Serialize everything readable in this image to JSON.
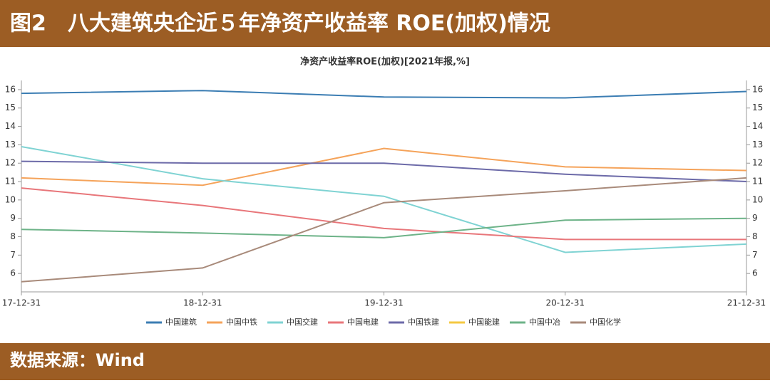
{
  "header": {
    "title": "图2　八大建筑央企近５年净资产收益率 ROE(加权)情况"
  },
  "footer": {
    "source": "数据来源：Wind"
  },
  "chart_data": {
    "type": "line",
    "title": "净资产收益率ROE(加权)[2021年报,%]",
    "categories": [
      "17-12-31",
      "18-12-31",
      "19-12-31",
      "20-12-31",
      "21-12-31"
    ],
    "ylim": [
      5,
      16.5
    ],
    "yticks": [
      6,
      7,
      8,
      9,
      10,
      11,
      12,
      13,
      14,
      15,
      16
    ],
    "legend": "bottom",
    "series": [
      {
        "name": "中国建筑",
        "color": "#3b7db3",
        "values": [
          15.8,
          15.95,
          15.6,
          15.55,
          15.9
        ]
      },
      {
        "name": "中国中铁",
        "color": "#f5a35a",
        "values": [
          11.2,
          10.8,
          12.8,
          11.8,
          11.6
        ]
      },
      {
        "name": "中国交建",
        "color": "#7fd3d3",
        "values": [
          12.9,
          11.15,
          10.2,
          7.15,
          7.6
        ]
      },
      {
        "name": "中国电建",
        "color": "#e8767a",
        "values": [
          10.65,
          9.7,
          8.45,
          7.85,
          7.85
        ]
      },
      {
        "name": "中国铁建",
        "color": "#6c6aa8",
        "values": [
          12.1,
          12.0,
          12.0,
          11.4,
          11.0
        ]
      },
      {
        "name": "中国能建",
        "color": "#f5c842",
        "values": [
          null,
          null,
          null,
          null,
          null
        ]
      },
      {
        "name": "中国中冶",
        "color": "#6db388",
        "values": [
          8.4,
          8.2,
          7.95,
          8.9,
          9.0
        ]
      },
      {
        "name": "中国化学",
        "color": "#a88a7a",
        "values": [
          5.55,
          6.3,
          9.85,
          10.5,
          11.2
        ]
      }
    ]
  }
}
